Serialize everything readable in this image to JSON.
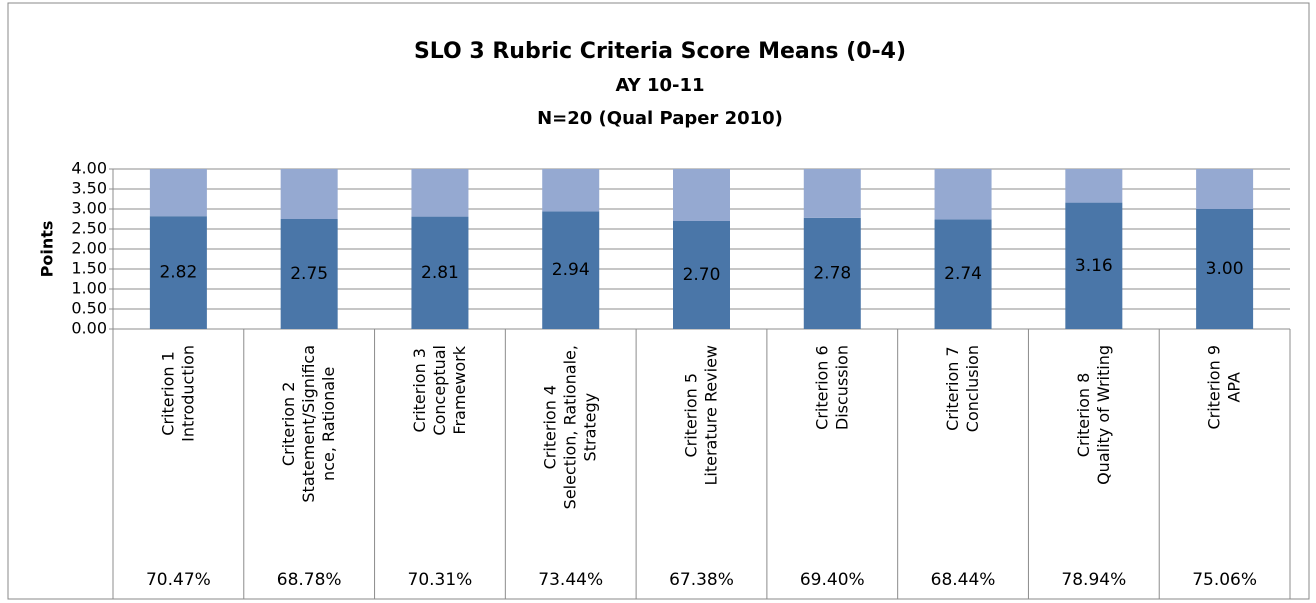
{
  "chart_data": {
    "type": "stacked_bar",
    "title": "SLO 3 Rubric Criteria Score Means (0-4)",
    "subtitle": "AY 10-11",
    "subtitle2": "N=20 (Qual Paper 2010)",
    "y_label": "Points",
    "categories": [
      "Criterion 1\nIntroduction",
      "Criterion 2\nStatement/Significa\nnce, Rationale",
      "Criterion 3\nConceptual\nFramework",
      "Criterion 4\nSelection, Rationale,\nStrategy",
      "Criterion 5\nLiterature Review",
      "Criterion 6\nDiscussion",
      "Criterion 7\nConclusion",
      "Criterion 8\nQuality of Writing",
      "Criterion 9\nAPA"
    ],
    "series": [
      {
        "color": "#4a76a8",
        "values": [
          2.82,
          2.75,
          2.81,
          2.94,
          2.7,
          2.78,
          2.74,
          3.16,
          3.0
        ],
        "value_labels": [
          "2.82",
          "2.75",
          "2.81",
          "2.94",
          "2.70",
          "2.78",
          "2.74",
          "3.16",
          "3.00"
        ]
      },
      {
        "color": "#95a9d1",
        "values": [
          1.18,
          1.25,
          1.19,
          1.06,
          1.3,
          1.22,
          1.26,
          0.84,
          1.0
        ]
      }
    ],
    "table_row": [
      "70.47%",
      "68.78%",
      "70.31%",
      "73.44%",
      "67.38%",
      "69.40%",
      "68.44%",
      "78.94%",
      "75.06%"
    ],
    "ylim": [
      0,
      4
    ],
    "yticks": [
      {
        "value": 0,
        "label": "0.00"
      },
      {
        "value": 0.5,
        "label": "0.50"
      },
      {
        "value": 1,
        "label": "1.00"
      },
      {
        "value": 1.5,
        "label": "1.50"
      },
      {
        "value": 2,
        "label": "2.00"
      },
      {
        "value": 2.5,
        "label": "2.50"
      },
      {
        "value": 3,
        "label": "3.00"
      },
      {
        "value": 3.5,
        "label": "3.50"
      },
      {
        "value": 4,
        "label": "4.00"
      }
    ],
    "grid": true
  }
}
